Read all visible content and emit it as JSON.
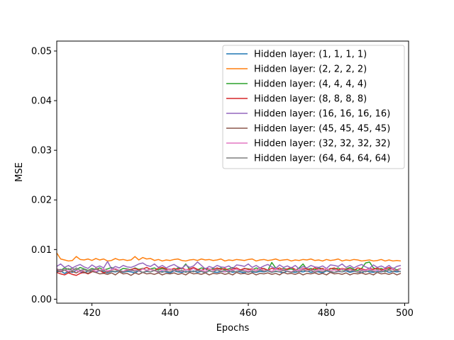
{
  "chart_data": {
    "type": "line",
    "xlabel": "Epochs",
    "ylabel": "MSE",
    "xlim": [
      411,
      501
    ],
    "ylim": [
      -0.0008,
      0.052
    ],
    "xticks": [
      420,
      440,
      460,
      480,
      500
    ],
    "xtick_labels": [
      "420",
      "440",
      "460",
      "480",
      "500"
    ],
    "yticks": [
      0.0,
      0.01,
      0.02,
      0.03,
      0.04,
      0.05
    ],
    "ytick_labels": [
      "0.00",
      "0.01",
      "0.02",
      "0.03",
      "0.04",
      "0.05"
    ],
    "grid": false,
    "legend_position": "top-right",
    "x": [
      411,
      412,
      413,
      414,
      415,
      416,
      417,
      418,
      419,
      420,
      421,
      422,
      423,
      424,
      425,
      426,
      427,
      428,
      429,
      430,
      431,
      432,
      433,
      434,
      435,
      436,
      437,
      438,
      439,
      440,
      441,
      442,
      443,
      444,
      445,
      446,
      447,
      448,
      449,
      450,
      451,
      452,
      453,
      454,
      455,
      456,
      457,
      458,
      459,
      460,
      461,
      462,
      463,
      464,
      465,
      466,
      467,
      468,
      469,
      470,
      471,
      472,
      473,
      474,
      475,
      476,
      477,
      478,
      479,
      480,
      481,
      482,
      483,
      484,
      485,
      486,
      487,
      488,
      489,
      490,
      491,
      492,
      493,
      494,
      495,
      496,
      497,
      498,
      499
    ],
    "series": [
      {
        "name": "Hidden layer: (1, 1, 1, 1)",
        "color": "#1f77b4",
        "values": [
          0.0055,
          0.0057,
          0.0052,
          0.0056,
          0.0054,
          0.0058,
          0.0055,
          0.0053,
          0.0057,
          0.0056,
          0.0054,
          0.0058,
          0.0055,
          0.0053,
          0.0056,
          0.0055,
          0.0057,
          0.0054,
          0.0056,
          0.0055,
          0.0053,
          0.0057,
          0.0054,
          0.0056,
          0.0055,
          0.0058,
          0.0054,
          0.0056,
          0.0055,
          0.0053,
          0.0057,
          0.0055,
          0.0054,
          0.0056,
          0.0055,
          0.0057,
          0.0054,
          0.0056,
          0.0053,
          0.0057,
          0.0055,
          0.0054,
          0.0056,
          0.0055,
          0.0057,
          0.0054,
          0.0056,
          0.0055,
          0.0053,
          0.0057,
          0.0055,
          0.0054,
          0.0056,
          0.0055,
          0.0057,
          0.0054,
          0.0056,
          0.0055,
          0.0053,
          0.0057,
          0.0055,
          0.0054,
          0.0056,
          0.0055,
          0.0057,
          0.0054,
          0.0056,
          0.0055,
          0.0053,
          0.0057,
          0.0055,
          0.0054,
          0.0056,
          0.0055,
          0.0057,
          0.0054,
          0.0056,
          0.0055,
          0.0053,
          0.0057,
          0.0055,
          0.0054,
          0.0056,
          0.0055,
          0.0057,
          0.0054,
          0.0056,
          0.0055,
          0.0056
        ]
      },
      {
        "name": "Hidden layer: (2, 2, 2, 2)",
        "color": "#ff7f0e",
        "values": [
          0.0093,
          0.0081,
          0.0079,
          0.0077,
          0.0078,
          0.0086,
          0.008,
          0.0079,
          0.0081,
          0.0078,
          0.0082,
          0.0079,
          0.0081,
          0.0077,
          0.0078,
          0.0082,
          0.0079,
          0.008,
          0.0078,
          0.0079,
          0.0086,
          0.0079,
          0.0084,
          0.0081,
          0.0082,
          0.0078,
          0.008,
          0.0077,
          0.0079,
          0.0078,
          0.008,
          0.0081,
          0.0078,
          0.0077,
          0.0079,
          0.008,
          0.0078,
          0.0081,
          0.0079,
          0.008,
          0.0078,
          0.0079,
          0.0081,
          0.0077,
          0.0079,
          0.0078,
          0.008,
          0.0079,
          0.0078,
          0.008,
          0.0081,
          0.0077,
          0.0079,
          0.008,
          0.0078,
          0.0079,
          0.0081,
          0.0078,
          0.0079,
          0.008,
          0.0077,
          0.0079,
          0.0078,
          0.008,
          0.0079,
          0.0081,
          0.0078,
          0.0079,
          0.0077,
          0.008,
          0.0078,
          0.0079,
          0.0081,
          0.0077,
          0.0079,
          0.0078,
          0.008,
          0.0079,
          0.0077,
          0.0078,
          0.0079,
          0.0077,
          0.0078,
          0.008,
          0.0077,
          0.0079,
          0.0077,
          0.0078,
          0.0077
        ]
      },
      {
        "name": "Hidden layer: (4, 4, 4, 4)",
        "color": "#2ca02c",
        "values": [
          0.0061,
          0.0058,
          0.0063,
          0.006,
          0.0062,
          0.0059,
          0.0064,
          0.0061,
          0.0058,
          0.0062,
          0.006,
          0.0063,
          0.0059,
          0.0061,
          0.0064,
          0.006,
          0.0058,
          0.0062,
          0.0061,
          0.0059,
          0.0063,
          0.006,
          0.0062,
          0.0058,
          0.0061,
          0.0063,
          0.0059,
          0.0062,
          0.006,
          0.0061,
          0.0058,
          0.0063,
          0.0061,
          0.0071,
          0.006,
          0.0062,
          0.0059,
          0.0063,
          0.0061,
          0.0058,
          0.0062,
          0.006,
          0.0063,
          0.0059,
          0.0061,
          0.0064,
          0.006,
          0.0058,
          0.0062,
          0.0061,
          0.0059,
          0.0063,
          0.006,
          0.0062,
          0.0058,
          0.0074,
          0.0063,
          0.0059,
          0.0062,
          0.006,
          0.0061,
          0.0058,
          0.0063,
          0.0071,
          0.006,
          0.0062,
          0.0059,
          0.0063,
          0.0061,
          0.0058,
          0.0062,
          0.006,
          0.0063,
          0.0059,
          0.0061,
          0.0064,
          0.006,
          0.0058,
          0.0062,
          0.0073,
          0.0075,
          0.0063,
          0.006,
          0.0062,
          0.0058,
          0.0061,
          0.0063,
          0.0059,
          0.0062
        ]
      },
      {
        "name": "Hidden layer: (8, 8, 8, 8)",
        "color": "#d62728",
        "values": [
          0.0054,
          0.0051,
          0.0049,
          0.0053,
          0.005,
          0.0048,
          0.0052,
          0.0054,
          0.0051,
          0.0055,
          0.0062,
          0.0058,
          0.0053,
          0.0056,
          0.0059,
          0.0061,
          0.0057,
          0.0055,
          0.0058,
          0.006,
          0.0062,
          0.0059,
          0.0061,
          0.0064,
          0.006,
          0.0058,
          0.0062,
          0.0064,
          0.0061,
          0.0059,
          0.0062,
          0.006,
          0.0063,
          0.0059,
          0.0061,
          0.0064,
          0.006,
          0.0058,
          0.0062,
          0.0061,
          0.0059,
          0.0063,
          0.006,
          0.0062,
          0.0058,
          0.0061,
          0.0063,
          0.0059,
          0.0062,
          0.006,
          0.0061,
          0.0058,
          0.0063,
          0.0061,
          0.0059,
          0.0062,
          0.006,
          0.0063,
          0.0059,
          0.0061,
          0.0064,
          0.006,
          0.0058,
          0.0062,
          0.0061,
          0.0059,
          0.0063,
          0.006,
          0.0062,
          0.0058,
          0.0061,
          0.0063,
          0.0059,
          0.0062,
          0.006,
          0.0061,
          0.0058,
          0.0063,
          0.0061,
          0.0059,
          0.0062,
          0.006,
          0.0063,
          0.0059,
          0.0061,
          0.0064,
          0.006,
          0.0058,
          0.0062
        ]
      },
      {
        "name": "Hidden layer: (16, 16, 16, 16)",
        "color": "#9467bd",
        "values": [
          0.0066,
          0.0071,
          0.0064,
          0.0068,
          0.0063,
          0.0067,
          0.007,
          0.0065,
          0.0062,
          0.0069,
          0.0064,
          0.0067,
          0.0063,
          0.0076,
          0.0061,
          0.0066,
          0.0063,
          0.0068,
          0.0065,
          0.0064,
          0.0067,
          0.0071,
          0.0073,
          0.0068,
          0.0066,
          0.0071,
          0.0064,
          0.0068,
          0.0063,
          0.0067,
          0.007,
          0.0065,
          0.0062,
          0.0069,
          0.0064,
          0.0067,
          0.0075,
          0.0068,
          0.0061,
          0.0066,
          0.0063,
          0.0068,
          0.0065,
          0.0064,
          0.0067,
          0.0062,
          0.0069,
          0.0068,
          0.0066,
          0.0071,
          0.0064,
          0.0068,
          0.0063,
          0.0067,
          0.007,
          0.0065,
          0.0062,
          0.0069,
          0.0064,
          0.0067,
          0.0063,
          0.0068,
          0.0061,
          0.0066,
          0.0063,
          0.0068,
          0.0065,
          0.0064,
          0.0067,
          0.0062,
          0.0069,
          0.0068,
          0.0066,
          0.0071,
          0.0064,
          0.0068,
          0.0063,
          0.0067,
          0.007,
          0.0065,
          0.0062,
          0.0069,
          0.0064,
          0.0067,
          0.0063,
          0.0068,
          0.0061,
          0.0066,
          0.0068
        ]
      },
      {
        "name": "Hidden layer: (45, 45, 45, 45)",
        "color": "#8c564b",
        "values": [
          0.0058,
          0.0055,
          0.0059,
          0.0054,
          0.0056,
          0.0053,
          0.0057,
          0.0055,
          0.0052,
          0.0056,
          0.0054,
          0.0051,
          0.0052,
          0.005,
          0.0053,
          0.0049,
          0.0055,
          0.0051,
          0.0052,
          0.0048,
          0.0053,
          0.005,
          0.0054,
          0.0051,
          0.0052,
          0.005,
          0.0053,
          0.0049,
          0.0052,
          0.0051,
          0.0053,
          0.005,
          0.0052,
          0.0049,
          0.0054,
          0.0051,
          0.0052,
          0.005,
          0.0053,
          0.0049,
          0.0052,
          0.0051,
          0.0053,
          0.005,
          0.0052,
          0.0049,
          0.0054,
          0.0051,
          0.0052,
          0.005,
          0.0053,
          0.0049,
          0.0052,
          0.0051,
          0.0053,
          0.005,
          0.0052,
          0.0049,
          0.0054,
          0.0051,
          0.0052,
          0.005,
          0.0053,
          0.0049,
          0.0052,
          0.0051,
          0.0053,
          0.005,
          0.0052,
          0.0049,
          0.0054,
          0.0051,
          0.0052,
          0.005,
          0.0053,
          0.0049,
          0.0052,
          0.0051,
          0.0053,
          0.005,
          0.0052,
          0.0049,
          0.0054,
          0.0051,
          0.0052,
          0.005,
          0.0053,
          0.0049,
          0.0052
        ]
      },
      {
        "name": "Hidden layer: (32, 32, 32, 32)",
        "color": "#e377c2",
        "values": [
          0.0062,
          0.0057,
          0.006,
          0.0056,
          0.0061,
          0.0058,
          0.0055,
          0.0059,
          0.0057,
          0.006,
          0.0056,
          0.0058,
          0.0061,
          0.0057,
          0.0059,
          0.0062,
          0.0058,
          0.0056,
          0.006,
          0.0057,
          0.0059,
          0.0056,
          0.0061,
          0.0058,
          0.006,
          0.0057,
          0.0055,
          0.0059,
          0.0058,
          0.0061,
          0.0057,
          0.0059,
          0.0056,
          0.006,
          0.0058,
          0.0062,
          0.0057,
          0.0059,
          0.0056,
          0.0061,
          0.0058,
          0.006,
          0.0057,
          0.0055,
          0.0059,
          0.0058,
          0.0061,
          0.0057,
          0.0059,
          0.0056,
          0.006,
          0.0058,
          0.0062,
          0.0057,
          0.0059,
          0.0056,
          0.0061,
          0.0058,
          0.006,
          0.0057,
          0.0055,
          0.0059,
          0.0058,
          0.0061,
          0.0057,
          0.0059,
          0.0056,
          0.006,
          0.0058,
          0.0062,
          0.0057,
          0.0059,
          0.0056,
          0.0061,
          0.0058,
          0.006,
          0.0057,
          0.0055,
          0.0059,
          0.0058,
          0.0061,
          0.0057,
          0.0059,
          0.0056,
          0.006,
          0.0058,
          0.0062,
          0.0057,
          0.0062
        ]
      },
      {
        "name": "Hidden layer: (64, 64, 64, 64)",
        "color": "#7f7f7f",
        "values": [
          0.0059,
          0.006,
          0.0058,
          0.0062,
          0.0057,
          0.0063,
          0.0058,
          0.006,
          0.0056,
          0.0059,
          0.0061,
          0.0057,
          0.0058,
          0.0054,
          0.0057,
          0.0056,
          0.0058,
          0.0055,
          0.0057,
          0.0059,
          0.0056,
          0.0058,
          0.0054,
          0.0057,
          0.0055,
          0.0058,
          0.0056,
          0.0054,
          0.0057,
          0.0055,
          0.0059,
          0.0056,
          0.0058,
          0.0054,
          0.0057,
          0.0055,
          0.0058,
          0.0056,
          0.0054,
          0.0057,
          0.0055,
          0.0059,
          0.0056,
          0.0058,
          0.0054,
          0.0057,
          0.0055,
          0.0058,
          0.0056,
          0.0054,
          0.0057,
          0.0055,
          0.0059,
          0.0056,
          0.0058,
          0.0054,
          0.0057,
          0.0055,
          0.0058,
          0.0056,
          0.0054,
          0.0057,
          0.0055,
          0.0059,
          0.0056,
          0.0058,
          0.0054,
          0.0057,
          0.0055,
          0.0058,
          0.0056,
          0.0054,
          0.0057,
          0.0055,
          0.0059,
          0.0056,
          0.0058,
          0.0054,
          0.0057,
          0.0055,
          0.0058,
          0.0056,
          0.0054,
          0.0057,
          0.0055,
          0.0059,
          0.0056,
          0.0058,
          0.0055
        ]
      }
    ]
  }
}
